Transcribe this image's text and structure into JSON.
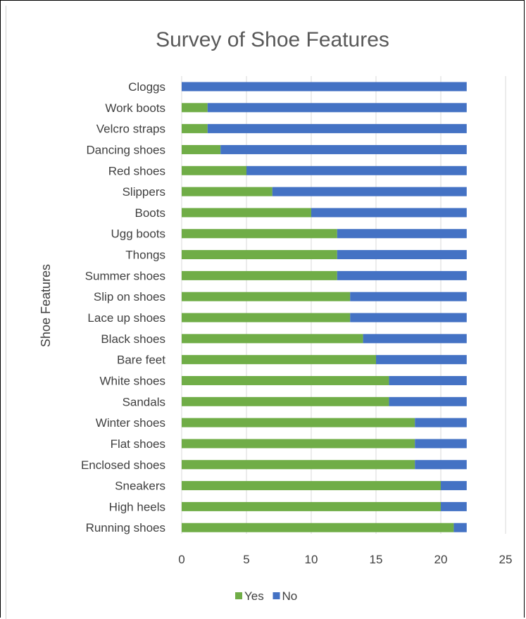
{
  "chart_data": {
    "type": "bar",
    "orientation": "horizontal",
    "stacked": true,
    "title": "Survey of Shoe Features",
    "ylabel": "Shoe  Features",
    "xlabel": "",
    "xlim": [
      0,
      25
    ],
    "x_ticks": [
      "0",
      "5",
      "10",
      "15",
      "20",
      "25"
    ],
    "grid": true,
    "legend_position": "bottom",
    "categories": [
      "Cloggs",
      "Work boots",
      "Velcro straps",
      "Dancing shoes",
      "Red shoes",
      "Slippers",
      "Boots",
      "Ugg boots",
      "Thongs",
      "Summer shoes",
      "Slip on shoes",
      "Lace up shoes",
      "Black shoes",
      "Bare feet",
      "White shoes",
      "Sandals",
      "Winter shoes",
      "Flat shoes",
      "Enclosed shoes",
      "Sneakers",
      "High heels",
      "Running shoes"
    ],
    "series": [
      {
        "name": "Yes",
        "color": "#70ad47",
        "values": [
          0,
          2,
          2,
          3,
          5,
          7,
          10,
          12,
          12,
          12,
          13,
          13,
          14,
          15,
          16,
          16,
          18,
          18,
          18,
          20,
          20,
          21
        ]
      },
      {
        "name": "No",
        "color": "#4472c4",
        "values": [
          22,
          20,
          20,
          19,
          17,
          15,
          12,
          10,
          10,
          10,
          9,
          9,
          8,
          7,
          6,
          6,
          4,
          4,
          4,
          2,
          2,
          1
        ]
      }
    ]
  }
}
